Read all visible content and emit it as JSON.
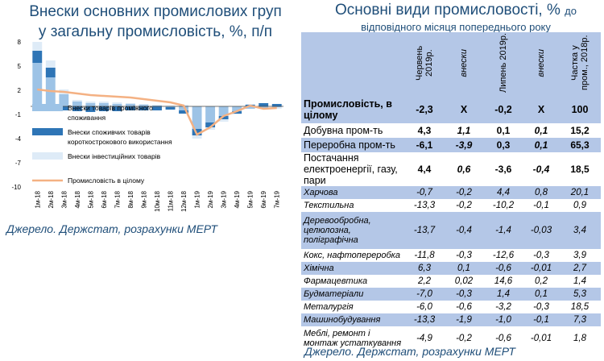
{
  "left": {
    "title_line1": "Внески основних промислових груп",
    "title_line2": "у загальну промисловість, %, п/п",
    "source": "Джерело. Держстат, розрахунки МЕРТ"
  },
  "right": {
    "title_main": "Основні види промисловості, %",
    "title_suffix": "до",
    "title_line2": "відповідного місяця попереднього року",
    "source": "Джерело. Держстат, розрахунки МЕРТ",
    "headers": [
      "Червень 2019р.",
      "внески",
      "Липень 2019р.",
      "внески",
      "Частка у пром., 2018р."
    ],
    "rows": [
      {
        "name": "Промисловість, в цілому",
        "v": [
          "-2,3",
          "X",
          "-0,2",
          "X",
          "100"
        ],
        "style": "bold",
        "shade": true
      },
      {
        "name": "Добувна пром-ть",
        "v": [
          "4,3",
          "1,1",
          "0,1",
          "0,1",
          "15,2"
        ],
        "style": "major",
        "shade": false
      },
      {
        "name": "Переробна пром-ть",
        "v": [
          "-6,1",
          "-3,9",
          "0,3",
          "0,1",
          "65,3"
        ],
        "style": "major",
        "shade": true
      },
      {
        "name": "Постачання електроенергії, газу, пари",
        "v": [
          "4,4",
          "0,6",
          "-3,6",
          "-0,4",
          "18,5"
        ],
        "style": "major",
        "shade": false
      },
      {
        "name": "Харчова",
        "v": [
          "-0,7",
          "-0,2",
          "4,4",
          "0,8",
          "20,1"
        ],
        "style": "it",
        "shade": true
      },
      {
        "name": "Текстильна",
        "v": [
          "-13,3",
          "-0,2",
          "-10,2",
          "-0,1",
          "0,9"
        ],
        "style": "it",
        "shade": false
      },
      {
        "name": "Деревообробна, целюлозна, поліграфічна",
        "v": [
          "-13,7",
          "-0,4",
          "-1,4",
          "-0,03",
          "3,4"
        ],
        "style": "it",
        "shade": true
      },
      {
        "name": "Кокс, нафтопереробка",
        "v": [
          "-11,8",
          "-0,3",
          "-12,6",
          "-0,3",
          "3,9"
        ],
        "style": "it",
        "shade": false
      },
      {
        "name": "Хімічна",
        "v": [
          "6,3",
          "0,1",
          "-0,6",
          "-0,01",
          "2,7"
        ],
        "style": "it",
        "shade": true
      },
      {
        "name": "Фармацевтика",
        "v": [
          "2,2",
          "0,02",
          "14,6",
          "0,2",
          "1,4"
        ],
        "style": "it",
        "shade": false
      },
      {
        "name": "Будматеріали",
        "v": [
          "-7,0",
          "-0,3",
          "1,4",
          "0,1",
          "5,3"
        ],
        "style": "it",
        "shade": true
      },
      {
        "name": "Металургія",
        "v": [
          "-6,0",
          "-0,6",
          "-3,2",
          "-0,3",
          "18,5"
        ],
        "style": "it",
        "shade": false
      },
      {
        "name": "Машинобудування",
        "v": [
          "-13,3",
          "-1,9",
          "-1,0",
          "-0,1",
          "7,3"
        ],
        "style": "it",
        "shade": true
      },
      {
        "name": "Меблі, ремонт і монтаж устаткування",
        "v": [
          "-4,9",
          "-0,2",
          "-0,6",
          "-0,01",
          "1,8"
        ],
        "style": "it",
        "shade": false
      }
    ]
  },
  "chart_data": {
    "type": "bar",
    "categories": [
      "1м-18",
      "2м-18",
      "3м-18",
      "4м-18",
      "5м-18",
      "6м-18",
      "7м-18",
      "8м-18",
      "9м-18",
      "10м-18",
      "11м-18",
      "12м-18",
      "1м-19",
      "2м-19",
      "3м-19",
      "4м-19",
      "5м-19",
      "6м-19",
      "7м-19"
    ],
    "ylim": [
      -10,
      8
    ],
    "yticks": [
      8,
      5,
      2,
      -1,
      -4,
      -7,
      -10
    ],
    "stacked": true,
    "series": [
      {
        "name": "Внески товарів проміжного споживання",
        "kind": "bar",
        "color": "#9dc3e6",
        "values": [
          5.4,
          3.6,
          1.5,
          0.6,
          0.4,
          0.4,
          0.3,
          0.3,
          0.2,
          0.1,
          -0.1,
          -0.5,
          -2.8,
          -2.0,
          -1.2,
          -0.6,
          -0.3,
          -0.2,
          -0.1
        ]
      },
      {
        "name": "Внески споживчих товарів короткострокового використання",
        "kind": "bar",
        "color": "#2e75b6",
        "values": [
          1.5,
          1.2,
          -0.5,
          -0.6,
          -0.7,
          -0.6,
          -0.6,
          -0.5,
          -0.5,
          -0.5,
          -0.3,
          -0.4,
          -0.8,
          -0.6,
          -0.4,
          -0.3,
          0.2,
          0.4,
          0.3
        ]
      },
      {
        "name": "Внески інвестиційних товарів",
        "kind": "bar",
        "color": "#deebf7",
        "values": [
          1.1,
          0.9,
          0.6,
          0.2,
          0.2,
          0.2,
          0.2,
          0.1,
          0.1,
          0.1,
          0.1,
          0.2,
          -0.4,
          -0.3,
          -0.3,
          -0.1,
          0.1,
          -0.1,
          -0.2
        ]
      },
      {
        "name": "Промисловість в цілому",
        "kind": "line",
        "color": "#f4b183",
        "values": [
          2.1,
          1.9,
          1.8,
          1.6,
          1.4,
          1.3,
          1.2,
          1.1,
          0.9,
          0.7,
          0.5,
          0.1,
          -3.5,
          -2.6,
          -1.2,
          -0.6,
          0.1,
          -0.3,
          -0.2
        ]
      }
    ]
  }
}
